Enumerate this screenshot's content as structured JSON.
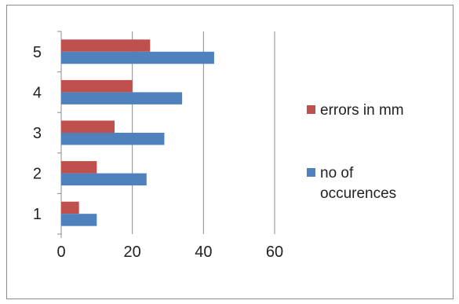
{
  "chart_data": {
    "type": "bar",
    "orientation": "horizontal",
    "categories": [
      "1",
      "2",
      "3",
      "4",
      "5"
    ],
    "series": [
      {
        "name": "errors in mm",
        "values": [
          5,
          10,
          15,
          20,
          25
        ],
        "color": "#c0504d"
      },
      {
        "name": "no of occurences",
        "values": [
          10,
          24,
          29,
          34,
          43
        ],
        "color": "#4f81bd"
      }
    ],
    "x_ticks": [
      "0",
      "20",
      "40",
      "60"
    ],
    "xlim": [
      0,
      60
    ],
    "grid": true,
    "legend_position": "right",
    "legend_order": [
      0,
      1
    ],
    "legend_labels": [
      [
        "errors in mm"
      ],
      [
        "no of",
        "occurences"
      ]
    ]
  }
}
